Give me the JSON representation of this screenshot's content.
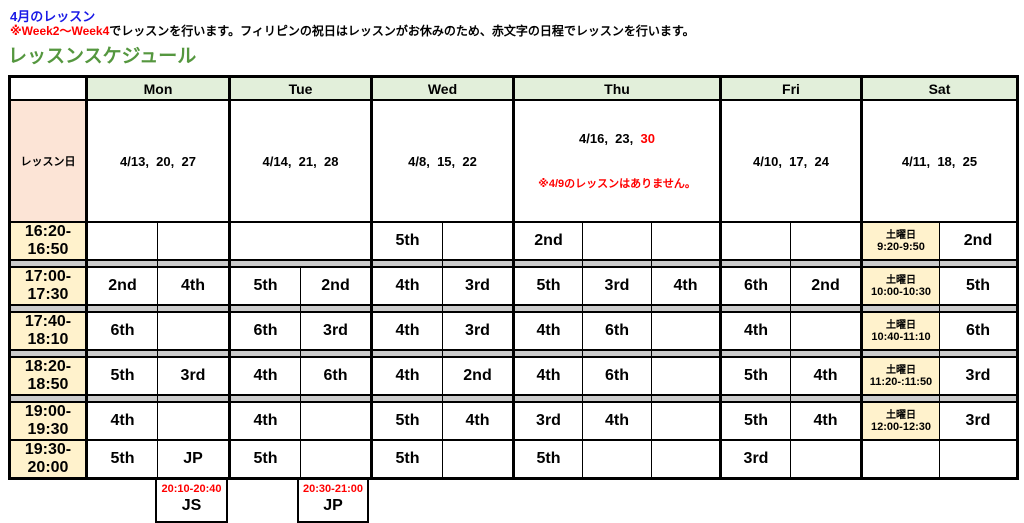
{
  "page": {
    "title": "4月のレッスン",
    "note_red": "※Week2～Week4",
    "note_rest": "でレッスンを行います。フィリピンの祝日はレッスンがお休みのため、赤文字の日程でレッスンを行います。",
    "section_heading": "レッスンスケジュール"
  },
  "colors": {
    "title_blue": "#1A1AE6",
    "alert_red": "#FF0000",
    "heading_green": "#55973F",
    "day_header_bg": "#E2EFDA",
    "corner_bg": "#FCE4D6",
    "time_bg": "#FFF2CC",
    "strip_gray": "#CBCBCB"
  },
  "table": {
    "corner_label": "レッスン日",
    "days": [
      {
        "label": "Mon",
        "span": "2",
        "dates": "4/13,  20,  27"
      },
      {
        "label": "Tue",
        "span": "2",
        "dates": "4/14,  21,  28"
      },
      {
        "label": "Wed",
        "span": "2",
        "dates": "4/8,  15,  22"
      },
      {
        "label": "Thu",
        "span": "3",
        "dates": "4/16,  23,  ",
        "dates_red": "30",
        "note": "※4/9のレッスンはありません。"
      },
      {
        "label": "Fri",
        "span": "2",
        "dates": "4/10,  17,  24"
      },
      {
        "label": "Sat",
        "span": "2",
        "dates": "4/11,  18,  25"
      }
    ],
    "rows": [
      {
        "time": "16:20-16:50",
        "strip_after": true,
        "cells": [
          {
            "d": "mon",
            "t": ""
          },
          {
            "d": "mon",
            "t": ""
          },
          {
            "d": "tue",
            "t": "",
            "span": 2
          },
          {
            "d": "wed",
            "t": "5th"
          },
          {
            "d": "wed",
            "t": ""
          },
          {
            "d": "thu",
            "t": "2nd"
          },
          {
            "d": "thu",
            "t": ""
          },
          {
            "d": "thu",
            "t": ""
          },
          {
            "d": "fri",
            "t": ""
          },
          {
            "d": "fri",
            "t": ""
          },
          {
            "d": "sat",
            "sat_label": "土曜日",
            "sat_time": "9:20-9:50"
          },
          {
            "d": "sat",
            "t": "2nd"
          }
        ]
      },
      {
        "time": "17:00-17:30",
        "strip_after": true,
        "cells": [
          {
            "d": "mon",
            "t": "2nd"
          },
          {
            "d": "mon",
            "t": "4th"
          },
          {
            "d": "tue",
            "t": "5th"
          },
          {
            "d": "tue",
            "t": "2nd"
          },
          {
            "d": "wed",
            "t": "4th"
          },
          {
            "d": "wed",
            "t": "3rd"
          },
          {
            "d": "thu",
            "t": "5th"
          },
          {
            "d": "thu",
            "t": "3rd"
          },
          {
            "d": "thu",
            "t": "4th"
          },
          {
            "d": "fri",
            "t": "6th"
          },
          {
            "d": "fri",
            "t": "2nd"
          },
          {
            "d": "sat",
            "sat_label": "土曜日",
            "sat_time": "10:00-10:30"
          },
          {
            "d": "sat",
            "t": "5th"
          }
        ]
      },
      {
        "time": "17:40-18:10",
        "strip_after": true,
        "cells": [
          {
            "d": "mon",
            "t": "6th"
          },
          {
            "d": "mon",
            "t": ""
          },
          {
            "d": "tue",
            "t": "6th"
          },
          {
            "d": "tue",
            "t": "3rd"
          },
          {
            "d": "wed",
            "t": "4th"
          },
          {
            "d": "wed",
            "t": "3rd"
          },
          {
            "d": "thu",
            "t": "4th"
          },
          {
            "d": "thu",
            "t": "6th"
          },
          {
            "d": "thu",
            "t": ""
          },
          {
            "d": "fri",
            "t": "4th"
          },
          {
            "d": "fri",
            "t": ""
          },
          {
            "d": "sat",
            "sat_label": "土曜日",
            "sat_time": "10:40-11:10"
          },
          {
            "d": "sat",
            "t": "6th"
          }
        ]
      },
      {
        "time": "18:20-18:50",
        "strip_after": true,
        "cells": [
          {
            "d": "mon",
            "t": "5th"
          },
          {
            "d": "mon",
            "t": "3rd"
          },
          {
            "d": "tue",
            "t": "4th"
          },
          {
            "d": "tue",
            "t": "6th"
          },
          {
            "d": "wed",
            "t": "4th"
          },
          {
            "d": "wed",
            "t": "2nd"
          },
          {
            "d": "thu",
            "t": "4th"
          },
          {
            "d": "thu",
            "t": "6th"
          },
          {
            "d": "thu",
            "t": ""
          },
          {
            "d": "fri",
            "t": "5th"
          },
          {
            "d": "fri",
            "t": "4th"
          },
          {
            "d": "sat",
            "sat_label": "土曜日",
            "sat_time": "11:20-:11:50"
          },
          {
            "d": "sat",
            "t": "3rd"
          }
        ]
      },
      {
        "time": "19:00-19:30",
        "strip_after": false,
        "cells": [
          {
            "d": "mon",
            "t": "4th"
          },
          {
            "d": "mon",
            "t": ""
          },
          {
            "d": "tue",
            "t": "4th"
          },
          {
            "d": "tue",
            "t": ""
          },
          {
            "d": "wed",
            "t": "5th"
          },
          {
            "d": "wed",
            "t": "4th"
          },
          {
            "d": "thu",
            "t": "3rd"
          },
          {
            "d": "thu",
            "t": "4th"
          },
          {
            "d": "thu",
            "t": ""
          },
          {
            "d": "fri",
            "t": "5th"
          },
          {
            "d": "fri",
            "t": "4th"
          },
          {
            "d": "sat",
            "sat_label": "土曜日",
            "sat_time": "12:00-12:30"
          },
          {
            "d": "sat",
            "t": "3rd"
          }
        ]
      },
      {
        "time": "19:30-20:00",
        "strip_after": false,
        "cells": [
          {
            "d": "mon",
            "t": "5th"
          },
          {
            "d": "mon",
            "t": "JP"
          },
          {
            "d": "tue",
            "t": "5th"
          },
          {
            "d": "tue",
            "t": ""
          },
          {
            "d": "wed",
            "t": "5th"
          },
          {
            "d": "wed",
            "t": ""
          },
          {
            "d": "thu",
            "t": "5th"
          },
          {
            "d": "thu",
            "t": ""
          },
          {
            "d": "thu",
            "t": ""
          },
          {
            "d": "fri",
            "t": "3rd"
          },
          {
            "d": "fri",
            "t": ""
          },
          {
            "d": "sat",
            "t": ""
          },
          {
            "d": "sat",
            "t": ""
          }
        ]
      }
    ]
  },
  "extra_lessons": [
    {
      "time": "20:10-20:40",
      "label": "JS"
    },
    {
      "time": "20:30-21:00",
      "label": "JP"
    }
  ]
}
